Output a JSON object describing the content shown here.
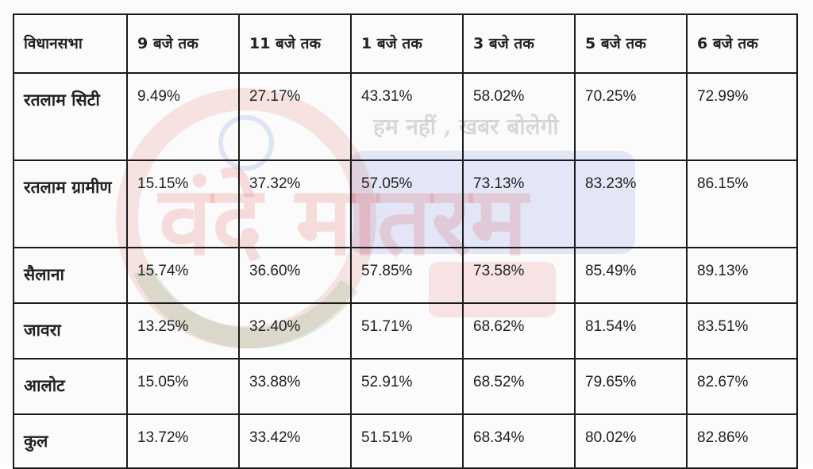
{
  "watermark": {
    "tagline": "हम नहीं , खबर बोलेगी",
    "logo_text": "वंदे मातरम"
  },
  "colors": {
    "border": "#1a1a1a",
    "text": "#222222",
    "watermark_red": "#e23a3a",
    "watermark_blue": "#3b5bdb",
    "watermark_green": "#3aa34a"
  },
  "table": {
    "headers": [
      "विधानसभा",
      "9 बजे तक",
      "11 बजे तक",
      "1 बजे तक",
      "3 बजे तक",
      "5 बजे तक",
      "6 बजे तक"
    ],
    "rows": [
      {
        "name": "रतलाम सिटी",
        "values": [
          "9.49%",
          "27.17%",
          "43.31%",
          "58.02%",
          "70.25%",
          "72.99%"
        ]
      },
      {
        "name": "रतलाम ग्रामीण",
        "values": [
          "15.15%",
          "37.32%",
          "57.05%",
          "73.13%",
          "83.23%",
          "86.15%"
        ]
      },
      {
        "name": "सैलाना",
        "values": [
          "15.74%",
          "36.60%",
          "57.85%",
          "73.58%",
          "85.49%",
          "89.13%"
        ]
      },
      {
        "name": "जावरा",
        "values": [
          "13.25%",
          "32.40%",
          "51.71%",
          "68.62%",
          "81.54%",
          "83.51%"
        ]
      },
      {
        "name": "आलोट",
        "values": [
          "15.05%",
          "33.88%",
          "52.91%",
          "68.52%",
          "79.65%",
          "82.67%"
        ]
      },
      {
        "name": "कुल",
        "values": [
          "13.72%",
          "33.42%",
          "51.51%",
          "68.34%",
          "80.02%",
          "82.86%"
        ]
      }
    ]
  }
}
